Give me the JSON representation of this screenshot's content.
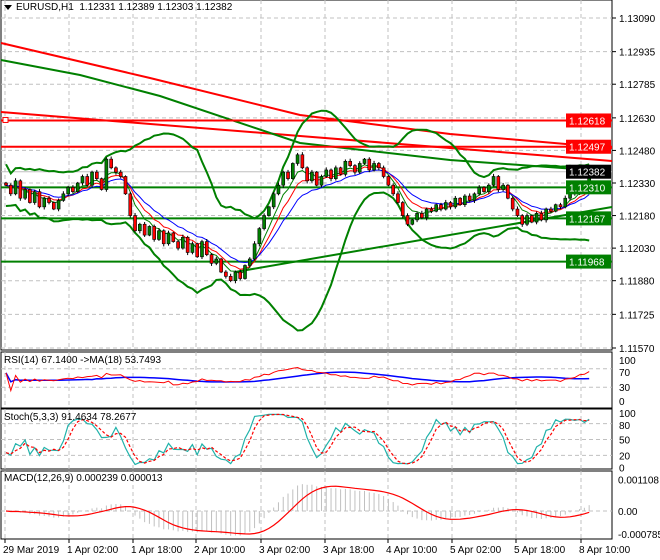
{
  "header": {
    "symbol": "EURUSD,H1",
    "ohlc": "1.12331 1.12389 1.12303 1.12382"
  },
  "price_axis": {
    "ticks": [
      "1.13090",
      "1.12935",
      "1.12785",
      "1.12630",
      "1.12480",
      "1.12330",
      "1.12180",
      "1.12030",
      "1.11880",
      "1.11725",
      "1.11570"
    ]
  },
  "levels": [
    {
      "price": "1.12618",
      "color": "#ff0000"
    },
    {
      "price": "1.12497",
      "color": "#ff0000"
    },
    {
      "price": "1.12310",
      "color": "#008000"
    },
    {
      "price": "1.12167",
      "color": "#008000"
    },
    {
      "price": "1.11968",
      "color": "#008000"
    }
  ],
  "current_price": {
    "price": "1.12382",
    "color": "#000000"
  },
  "rsi": {
    "label": "RSI(14) 67.1400  ->MA(18) 53.7493",
    "ticks": [
      "100",
      "70",
      "30",
      "0"
    ]
  },
  "stoch": {
    "label": "Stoch(5,3,3) 91.4634 78.2677",
    "ticks": [
      "100",
      "80",
      "50",
      "20",
      "0"
    ]
  },
  "macd": {
    "label": "MACD(12,26,9) 0.000239 0.000013",
    "ticks": [
      "0.001108",
      "0.00",
      "-0.000785"
    ]
  },
  "time_axis": [
    "29 Mar 2019",
    "1 Apr 02:00",
    "1 Apr 18:00",
    "2 Apr 10:00",
    "3 Apr 02:00",
    "3 Apr 18:00",
    "4 Apr 10:00",
    "5 Apr 02:00",
    "5 Apr 18:00",
    "8 Apr 10:00"
  ],
  "colors": {
    "bull": "#008000",
    "bear": "#ff0000",
    "bollinger": "#008000",
    "grid": "#c0c0c0",
    "rsi": "#ff0000",
    "rsi_ma": "#0000ff",
    "stoch_main": "#20b2aa",
    "stoch_signal": "#ff0000",
    "macd_hist": "#c0c0c0",
    "macd_signal": "#ff0000"
  },
  "chart_data": {
    "type": "candlestick",
    "symbol": "EURUSD",
    "timeframe": "H1",
    "ylim": [
      1.1157,
      1.1309
    ],
    "closes": [
      1.1232,
      1.1228,
      1.1234,
      1.1226,
      1.123,
      1.1224,
      1.1229,
      1.1222,
      1.1226,
      1.1224,
      1.1221,
      1.1225,
      1.1228,
      1.1231,
      1.1229,
      1.1233,
      1.1236,
      1.1232,
      1.1238,
      1.1235,
      1.123,
      1.1244,
      1.124,
      1.1238,
      1.1236,
      1.1228,
      1.1218,
      1.1211,
      1.1214,
      1.1209,
      1.1213,
      1.1207,
      1.1211,
      1.1205,
      1.121,
      1.1206,
      1.1203,
      1.1208,
      1.1201,
      1.1205,
      1.1199,
      1.1206,
      1.12,
      1.1196,
      1.1198,
      1.1192,
      1.119,
      1.1188,
      1.1192,
      1.1189,
      1.1195,
      1.1198,
      1.1205,
      1.1212,
      1.1218,
      1.1222,
      1.1228,
      1.1232,
      1.1238,
      1.1235,
      1.1242,
      1.1246,
      1.124,
      1.1234,
      1.1238,
      1.1232,
      1.1236,
      1.1239,
      1.1235,
      1.124,
      1.1237,
      1.1243,
      1.1241,
      1.1238,
      1.1242,
      1.1244,
      1.1239,
      1.1242,
      1.124,
      1.1236,
      1.1232,
      1.1228,
      1.1224,
      1.1218,
      1.1214,
      1.1216,
      1.1219,
      1.1217,
      1.1221,
      1.122,
      1.1223,
      1.1221,
      1.1224,
      1.1222,
      1.1226,
      1.1223,
      1.1227,
      1.1225,
      1.1228,
      1.1231,
      1.1229,
      1.1232,
      1.1236,
      1.123,
      1.1232,
      1.1226,
      1.1221,
      1.1218,
      1.1214,
      1.1218,
      1.1215,
      1.1219,
      1.1216,
      1.1221,
      1.122,
      1.1223,
      1.1222,
      1.1226,
      1.123,
      1.1228,
      1.1233,
      1.1231,
      1.12382
    ]
  }
}
